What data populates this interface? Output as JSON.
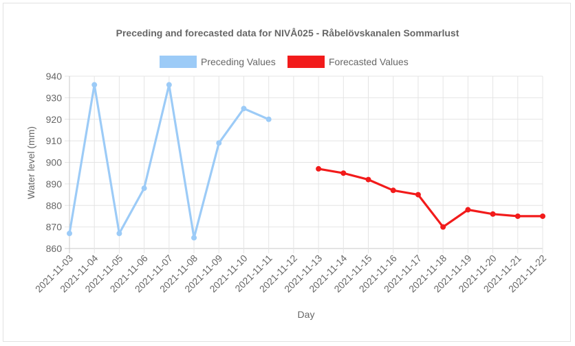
{
  "chart_data": {
    "type": "line",
    "title": "Preceding and forecasted data for NIVÅ025 - Råbelövskanalen Sommarlust",
    "xlabel": "Day",
    "ylabel": "Water level (mm)",
    "ylim": [
      860,
      940
    ],
    "yticks": [
      "860",
      "870",
      "880",
      "890",
      "900",
      "910",
      "920",
      "930",
      "940"
    ],
    "grid": true,
    "legend_position": "top",
    "categories": [
      "2021-11-03",
      "2021-11-04",
      "2021-11-05",
      "2021-11-06",
      "2021-11-07",
      "2021-11-08",
      "2021-11-09",
      "2021-11-10",
      "2021-11-11",
      "2021-11-12",
      "2021-11-13",
      "2021-11-14",
      "2021-11-15",
      "2021-11-16",
      "2021-11-17",
      "2021-11-18",
      "2021-11-19",
      "2021-11-20",
      "2021-11-21",
      "2021-11-22"
    ],
    "series": [
      {
        "name": "Preceding Values",
        "color": "#9ccbf7",
        "values": [
          867,
          936,
          867,
          888,
          936,
          865,
          909,
          925,
          920,
          null,
          null,
          null,
          null,
          null,
          null,
          null,
          null,
          null,
          null,
          null
        ]
      },
      {
        "name": "Forecasted Values",
        "color": "#f21b1b",
        "values": [
          null,
          null,
          null,
          null,
          null,
          null,
          null,
          null,
          null,
          null,
          897,
          895,
          892,
          887,
          885,
          870,
          878,
          876,
          875,
          875
        ]
      }
    ]
  }
}
